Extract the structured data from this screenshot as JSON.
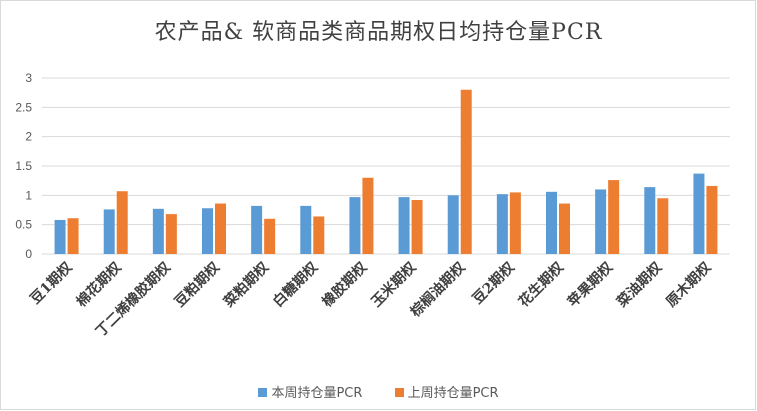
{
  "chart_data": {
    "type": "bar",
    "title": "农产品& 软商品类商品期权日均持仓量PCR",
    "categories": [
      "豆1期权",
      "棉花期权",
      "丁二烯橡胶期权",
      "豆粕期权",
      "菜粕期权",
      "白糖期权",
      "橡胶期权",
      "玉米期权",
      "棕榈油期权",
      "豆2期权",
      "花生期权",
      "苹果期权",
      "菜油期权",
      "原木期权"
    ],
    "series": [
      {
        "name": "本周持仓量PCR",
        "color": "#5b9bd5",
        "values": [
          0.58,
          0.76,
          0.77,
          0.78,
          0.82,
          0.82,
          0.97,
          0.97,
          1.0,
          1.02,
          1.06,
          1.1,
          1.14,
          1.37
        ]
      },
      {
        "name": "上周持仓量PCR",
        "color": "#ed7d31",
        "values": [
          0.61,
          1.07,
          0.68,
          0.86,
          0.6,
          0.64,
          1.3,
          0.92,
          2.8,
          1.05,
          0.86,
          1.26,
          0.95,
          1.16
        ]
      }
    ],
    "y_ticks": [
      "0",
      "0.5",
      "1",
      "1.5",
      "2",
      "2.5",
      "3"
    ],
    "ylim": [
      0,
      3
    ],
    "grid": true,
    "legend": "bottom"
  }
}
